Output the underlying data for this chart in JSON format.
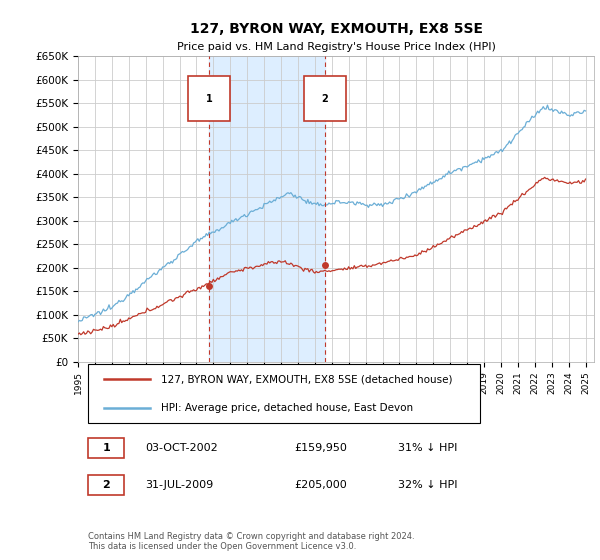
{
  "title": "127, BYRON WAY, EXMOUTH, EX8 5SE",
  "subtitle": "Price paid vs. HM Land Registry's House Price Index (HPI)",
  "ylabel_ticks": [
    "£0",
    "£50K",
    "£100K",
    "£150K",
    "£200K",
    "£250K",
    "£300K",
    "£350K",
    "£400K",
    "£450K",
    "£500K",
    "£550K",
    "£600K",
    "£650K"
  ],
  "ylim": [
    0,
    650000
  ],
  "ytick_vals": [
    0,
    50000,
    100000,
    150000,
    200000,
    250000,
    300000,
    350000,
    400000,
    450000,
    500000,
    550000,
    600000,
    650000
  ],
  "sale1_x": 2002.75,
  "sale1_y": 159950,
  "sale1_label": "1",
  "sale2_x": 2009.58,
  "sale2_y": 205000,
  "sale2_label": "2",
  "legend_line1": "127, BYRON WAY, EXMOUTH, EX8 5SE (detached house)",
  "legend_line2": "HPI: Average price, detached house, East Devon",
  "table_row1": [
    "1",
    "03-OCT-2002",
    "£159,950",
    "31% ↓ HPI"
  ],
  "table_row2": [
    "2",
    "31-JUL-2009",
    "£205,000",
    "32% ↓ HPI"
  ],
  "footnote1": "Contains HM Land Registry data © Crown copyright and database right 2024.",
  "footnote2": "This data is licensed under the Open Government Licence v3.0.",
  "hpi_color": "#6baed6",
  "price_color": "#c0392b",
  "shade_color": "#ddeeff",
  "vline_color": "#c0392b",
  "background_color": "#ffffff",
  "grid_color": "#cccccc",
  "xlim_start": 1995,
  "xlim_end": 2025.5
}
